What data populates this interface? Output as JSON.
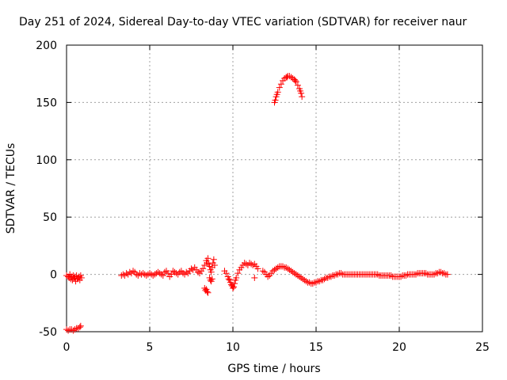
{
  "chart_data": {
    "type": "scatter",
    "title": "Day 251 of 2024, Sidereal Day-to-day VTEC variation (SDTVAR) for receiver naur",
    "xlabel": "GPS time / hours",
    "ylabel": "SDTVAR / TECUs",
    "xlim": [
      0,
      25
    ],
    "ylim": [
      -50,
      200
    ],
    "xticks": [
      0,
      5,
      10,
      15,
      20,
      25
    ],
    "yticks": [
      -50,
      0,
      50,
      100,
      150,
      200
    ],
    "grid": true,
    "marker": "+",
    "color": "#ff0000",
    "series": [
      {
        "name": "SDTVAR",
        "points": [
          [
            0.0,
            -1
          ],
          [
            0.1,
            -2
          ],
          [
            0.15,
            -3
          ],
          [
            0.2,
            0
          ],
          [
            0.25,
            -4
          ],
          [
            0.3,
            -2
          ],
          [
            0.35,
            -5
          ],
          [
            0.4,
            -1
          ],
          [
            0.45,
            -3
          ],
          [
            0.5,
            -2
          ],
          [
            0.55,
            -6
          ],
          [
            0.6,
            -1
          ],
          [
            0.65,
            -4
          ],
          [
            0.7,
            -3
          ],
          [
            0.75,
            -2
          ],
          [
            0.8,
            -5
          ],
          [
            0.85,
            -1
          ],
          [
            0.9,
            -3
          ],
          [
            0.0,
            -48
          ],
          [
            0.1,
            -49
          ],
          [
            0.2,
            -48
          ],
          [
            0.3,
            -48
          ],
          [
            0.4,
            -49
          ],
          [
            0.5,
            -48
          ],
          [
            0.6,
            -47
          ],
          [
            0.7,
            -47
          ],
          [
            0.8,
            -46
          ],
          [
            0.85,
            -45
          ],
          [
            3.3,
            -1
          ],
          [
            3.4,
            0
          ],
          [
            3.5,
            -1
          ],
          [
            3.6,
            1
          ],
          [
            3.7,
            0
          ],
          [
            3.8,
            2
          ],
          [
            3.9,
            1
          ],
          [
            4.0,
            3
          ],
          [
            4.1,
            2
          ],
          [
            4.2,
            0
          ],
          [
            4.3,
            -1
          ],
          [
            4.4,
            1
          ],
          [
            4.5,
            0
          ],
          [
            4.6,
            1
          ],
          [
            4.7,
            0
          ],
          [
            4.8,
            -1
          ],
          [
            4.9,
            0
          ],
          [
            5.0,
            1
          ],
          [
            5.1,
            0
          ],
          [
            5.2,
            -1
          ],
          [
            5.3,
            0
          ],
          [
            5.4,
            1
          ],
          [
            5.5,
            2
          ],
          [
            5.6,
            1
          ],
          [
            5.7,
            0
          ],
          [
            5.8,
            -1
          ],
          [
            5.9,
            2
          ],
          [
            6.0,
            3
          ],
          [
            6.1,
            1
          ],
          [
            6.2,
            -2
          ],
          [
            6.3,
            0
          ],
          [
            6.4,
            3
          ],
          [
            6.5,
            2
          ],
          [
            6.6,
            1
          ],
          [
            6.7,
            0
          ],
          [
            6.8,
            2
          ],
          [
            6.9,
            3
          ],
          [
            7.0,
            1
          ],
          [
            7.1,
            0
          ],
          [
            7.2,
            2
          ],
          [
            7.3,
            1
          ],
          [
            7.4,
            3
          ],
          [
            7.5,
            5
          ],
          [
            7.6,
            4
          ],
          [
            7.7,
            6
          ],
          [
            7.8,
            4
          ],
          [
            7.9,
            2
          ],
          [
            8.0,
            1
          ],
          [
            8.1,
            3
          ],
          [
            8.2,
            5
          ],
          [
            8.3,
            8
          ],
          [
            8.4,
            12
          ],
          [
            8.45,
            10
          ],
          [
            8.5,
            14
          ],
          [
            8.55,
            9
          ],
          [
            8.6,
            7
          ],
          [
            8.65,
            4
          ],
          [
            8.7,
            2
          ],
          [
            8.75,
            6
          ],
          [
            8.8,
            10
          ],
          [
            8.85,
            13
          ],
          [
            8.9,
            8
          ],
          [
            8.3,
            -12
          ],
          [
            8.35,
            -14
          ],
          [
            8.4,
            -13
          ],
          [
            8.45,
            -15
          ],
          [
            8.5,
            -16
          ],
          [
            8.6,
            -3
          ],
          [
            8.65,
            -5
          ],
          [
            8.7,
            -6
          ],
          [
            8.75,
            -4
          ],
          [
            9.5,
            3
          ],
          [
            9.6,
            1
          ],
          [
            9.7,
            -2
          ],
          [
            9.75,
            -4
          ],
          [
            9.8,
            -5
          ],
          [
            9.85,
            -7
          ],
          [
            9.9,
            -9
          ],
          [
            9.95,
            -10
          ],
          [
            10.0,
            -12
          ],
          [
            10.05,
            -11
          ],
          [
            10.1,
            -8
          ],
          [
            10.15,
            -5
          ],
          [
            10.2,
            -3
          ],
          [
            10.3,
            1
          ],
          [
            10.4,
            4
          ],
          [
            10.5,
            6
          ],
          [
            10.6,
            8
          ],
          [
            10.7,
            10
          ],
          [
            10.8,
            9
          ],
          [
            10.9,
            8
          ],
          [
            11.0,
            10
          ],
          [
            11.1,
            9
          ],
          [
            11.2,
            8
          ],
          [
            11.3,
            9
          ],
          [
            11.4,
            7
          ],
          [
            11.5,
            5
          ],
          [
            11.3,
            -3
          ],
          [
            11.8,
            3
          ],
          [
            11.9,
            2
          ],
          [
            12.0,
            0
          ],
          [
            12.1,
            -2
          ],
          [
            12.2,
            -1
          ],
          [
            12.3,
            1
          ],
          [
            12.4,
            3
          ],
          [
            12.5,
            4
          ],
          [
            12.6,
            5
          ],
          [
            12.7,
            6
          ],
          [
            12.8,
            7
          ],
          [
            12.9,
            7
          ],
          [
            13.0,
            7
          ],
          [
            13.1,
            6
          ],
          [
            13.2,
            6
          ],
          [
            13.3,
            5
          ],
          [
            13.4,
            4
          ],
          [
            13.5,
            3
          ],
          [
            13.6,
            2
          ],
          [
            13.7,
            1
          ],
          [
            13.8,
            0
          ],
          [
            13.9,
            -1
          ],
          [
            14.0,
            -2
          ],
          [
            14.1,
            -3
          ],
          [
            14.2,
            -4
          ],
          [
            14.3,
            -5
          ],
          [
            14.4,
            -6
          ],
          [
            14.5,
            -7
          ],
          [
            14.6,
            -7
          ],
          [
            14.7,
            -8
          ],
          [
            14.8,
            -8
          ],
          [
            14.9,
            -7
          ],
          [
            15.0,
            -7
          ],
          [
            15.1,
            -6
          ],
          [
            15.2,
            -6
          ],
          [
            15.3,
            -5
          ],
          [
            15.4,
            -5
          ],
          [
            15.5,
            -4
          ],
          [
            15.6,
            -3
          ],
          [
            15.7,
            -3
          ],
          [
            15.8,
            -2
          ],
          [
            15.9,
            -2
          ],
          [
            16.0,
            -1
          ],
          [
            16.1,
            -1
          ],
          [
            16.2,
            0
          ],
          [
            16.3,
            0
          ],
          [
            16.4,
            1
          ],
          [
            16.5,
            1
          ],
          [
            16.6,
            0
          ],
          [
            16.7,
            0
          ],
          [
            16.8,
            0
          ],
          [
            16.9,
            0
          ],
          [
            17.0,
            0
          ],
          [
            17.1,
            0
          ],
          [
            17.2,
            0
          ],
          [
            17.3,
            0
          ],
          [
            17.4,
            0
          ],
          [
            17.5,
            0
          ],
          [
            17.6,
            0
          ],
          [
            17.7,
            0
          ],
          [
            17.8,
            0
          ],
          [
            17.9,
            0
          ],
          [
            18.0,
            0
          ],
          [
            18.1,
            0
          ],
          [
            18.2,
            0
          ],
          [
            18.3,
            0
          ],
          [
            18.4,
            0
          ],
          [
            18.5,
            0
          ],
          [
            18.6,
            0
          ],
          [
            18.7,
            0
          ],
          [
            18.8,
            -1
          ],
          [
            18.9,
            -1
          ],
          [
            19.0,
            -1
          ],
          [
            19.1,
            -1
          ],
          [
            19.2,
            -1
          ],
          [
            19.3,
            -1
          ],
          [
            19.4,
            -1
          ],
          [
            19.5,
            -1
          ],
          [
            19.6,
            -2
          ],
          [
            19.7,
            -2
          ],
          [
            19.8,
            -2
          ],
          [
            19.9,
            -2
          ],
          [
            20.0,
            -2
          ],
          [
            20.1,
            -2
          ],
          [
            20.2,
            -1
          ],
          [
            20.3,
            -1
          ],
          [
            20.4,
            -1
          ],
          [
            20.5,
            0
          ],
          [
            20.6,
            0
          ],
          [
            20.7,
            0
          ],
          [
            20.8,
            0
          ],
          [
            20.9,
            0
          ],
          [
            21.0,
            0
          ],
          [
            21.1,
            1
          ],
          [
            21.2,
            1
          ],
          [
            21.3,
            1
          ],
          [
            21.4,
            1
          ],
          [
            21.5,
            1
          ],
          [
            21.6,
            1
          ],
          [
            21.7,
            0
          ],
          [
            21.8,
            0
          ],
          [
            21.9,
            0
          ],
          [
            22.0,
            0
          ],
          [
            22.1,
            0
          ],
          [
            22.2,
            1
          ],
          [
            22.3,
            1
          ],
          [
            22.4,
            2
          ],
          [
            22.5,
            2
          ],
          [
            22.6,
            1
          ],
          [
            22.7,
            1
          ],
          [
            22.8,
            0
          ],
          [
            22.9,
            0
          ],
          [
            12.5,
            150
          ],
          [
            12.6,
            155
          ],
          [
            12.7,
            159
          ],
          [
            12.8,
            163
          ],
          [
            12.9,
            166
          ],
          [
            13.0,
            169
          ],
          [
            13.1,
            171
          ],
          [
            13.2,
            172
          ],
          [
            13.3,
            173
          ],
          [
            13.4,
            173
          ],
          [
            13.5,
            172
          ],
          [
            13.6,
            171
          ],
          [
            13.7,
            170
          ],
          [
            13.8,
            168
          ],
          [
            13.9,
            165
          ],
          [
            14.0,
            162
          ],
          [
            14.1,
            158
          ],
          [
            14.15,
            155
          ],
          [
            12.55,
            152
          ],
          [
            12.65,
            157
          ],
          [
            13.25,
            172
          ],
          [
            13.75,
            169
          ],
          [
            14.05,
            160
          ]
        ]
      }
    ]
  }
}
